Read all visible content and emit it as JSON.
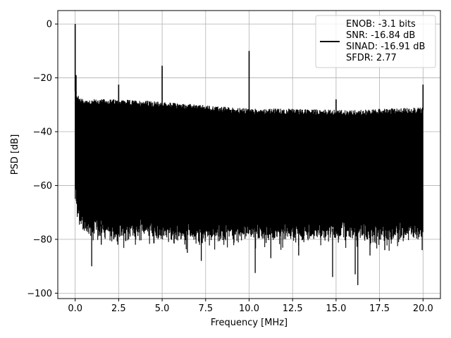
{
  "chart_data": {
    "type": "line",
    "title": "",
    "xlabel": "Frequency [MHz]",
    "ylabel": "PSD [dB]",
    "xlim": [
      -1.0,
      21.0
    ],
    "ylim": [
      -102,
      5
    ],
    "x_ticks": [
      0.0,
      2.5,
      5.0,
      7.5,
      10.0,
      12.5,
      15.0,
      17.5,
      20.0
    ],
    "x_tick_labels": [
      "0.0",
      "2.5",
      "5.0",
      "7.5",
      "10.0",
      "12.5",
      "15.0",
      "17.5",
      "20.0"
    ],
    "y_ticks": [
      0,
      -20,
      -40,
      -60,
      -80,
      -100
    ],
    "y_tick_labels": [
      "0",
      "−20",
      "−40",
      "−60",
      "−80",
      "−100"
    ],
    "grid": true,
    "series": [
      {
        "color": "#000000",
        "noise_band": {
          "x": [
            0.0,
            0.2,
            0.5,
            1.0,
            2.0,
            4.0,
            6.0,
            8.0,
            10.0,
            12.0,
            14.0,
            16.0,
            18.0,
            20.0
          ],
          "upper": [
            -25,
            -28,
            -29,
            -29,
            -29,
            -29.5,
            -30.5,
            -31.5,
            -32.5,
            -32.5,
            -32.8,
            -33,
            -32.5,
            -32
          ],
          "lower": [
            -60,
            -70,
            -73,
            -74,
            -75,
            -75,
            -76,
            -76,
            -76,
            -76,
            -76,
            -76,
            -76,
            -75
          ]
        },
        "spurs": [
          {
            "x": 0.0,
            "y": 0
          },
          {
            "x": 0.05,
            "y": -19
          },
          {
            "x": 2.5,
            "y": -22.5
          },
          {
            "x": 5.0,
            "y": -15.5
          },
          {
            "x": 10.0,
            "y": -10
          },
          {
            "x": 15.0,
            "y": -28
          },
          {
            "x": 20.0,
            "y": -22.5
          }
        ],
        "deep_nulls": [
          {
            "x": 0.95,
            "y": -90
          },
          {
            "x": 1.5,
            "y": -82
          },
          {
            "x": 2.45,
            "y": -82
          },
          {
            "x": 6.45,
            "y": -85
          },
          {
            "x": 7.25,
            "y": -88
          },
          {
            "x": 10.35,
            "y": -92.5
          },
          {
            "x": 11.25,
            "y": -87
          },
          {
            "x": 12.85,
            "y": -86
          },
          {
            "x": 14.8,
            "y": -94
          },
          {
            "x": 16.1,
            "y": -93
          },
          {
            "x": 16.25,
            "y": -97
          },
          {
            "x": 16.95,
            "y": -86
          },
          {
            "x": 17.8,
            "y": -84
          },
          {
            "x": 19.95,
            "y": -84
          }
        ]
      }
    ],
    "legend": {
      "position": "top-right",
      "entries": [
        "ENOB: -3.1 bits",
        "SNR: -16.84 dB",
        "SINAD: -16.91 dB",
        "SFDR: 2.77"
      ]
    }
  }
}
